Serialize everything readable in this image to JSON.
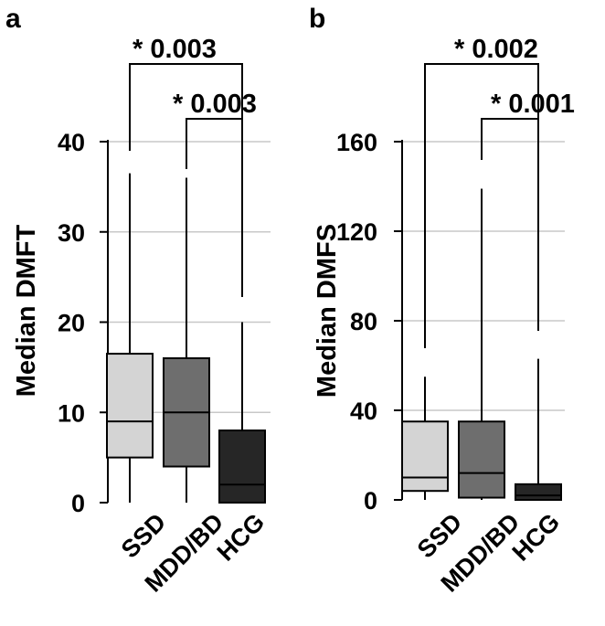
{
  "chart_data": [
    {
      "type": "box",
      "panel_label": "a",
      "ylabel": "Median DMFT",
      "ylim": [
        0,
        40
      ],
      "yticks": [
        0,
        10,
        20,
        30,
        40
      ],
      "grid": true,
      "categories": [
        "SSD",
        "MDD/BD",
        "HCG"
      ],
      "boxes": [
        {
          "group": "SSD",
          "min": 0,
          "q1": 5,
          "median": 9,
          "q3": 16.5,
          "max": 36.5,
          "fill": "#d4d4d4"
        },
        {
          "group": "MDD/BD",
          "min": 0,
          "q1": 4,
          "median": 10,
          "q3": 16,
          "max": 36,
          "fill": "#6e6e6e"
        },
        {
          "group": "HCG",
          "min": 0,
          "q1": 0,
          "median": 2,
          "q3": 8,
          "max": 20,
          "fill": "#262626"
        }
      ],
      "annotations": [
        {
          "from": "SSD",
          "to": "HCG",
          "label": "* 0.003"
        },
        {
          "from": "MDD/BD",
          "to": "HCG",
          "label": "* 0.003"
        }
      ]
    },
    {
      "type": "box",
      "panel_label": "b",
      "ylabel": "Median DMFS",
      "ylim": [
        0,
        160
      ],
      "yticks": [
        0,
        40,
        80,
        120,
        160
      ],
      "grid": true,
      "categories": [
        "SSD",
        "MDD/BD",
        "HCG"
      ],
      "boxes": [
        {
          "group": "SSD",
          "min": 0,
          "q1": 4,
          "median": 10,
          "q3": 35,
          "max": 55,
          "fill": "#d4d4d4"
        },
        {
          "group": "MDD/BD",
          "min": 0,
          "q1": 1,
          "median": 12,
          "q3": 35,
          "max": 139,
          "fill": "#6e6e6e"
        },
        {
          "group": "HCG",
          "min": 0,
          "q1": 0,
          "median": 2,
          "q3": 7,
          "max": 63,
          "fill": "#262626"
        }
      ],
      "annotations": [
        {
          "from": "SSD",
          "to": "HCG",
          "label": "* 0.002"
        },
        {
          "from": "MDD/BD",
          "to": "HCG",
          "label": "* 0.001"
        }
      ]
    }
  ]
}
